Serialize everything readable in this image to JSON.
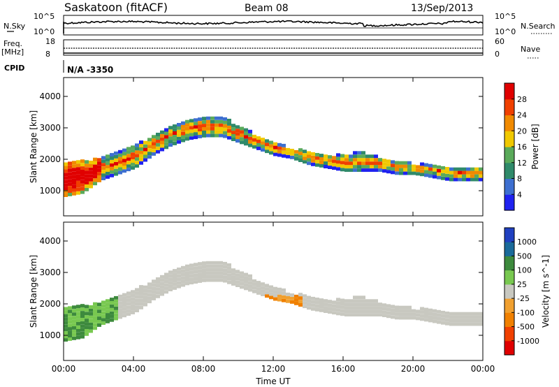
{
  "header": {
    "title": "Saskatoon (fitACF)",
    "beam": "Beam 08",
    "date": "13/Sep/2013"
  },
  "status_panels": {
    "nsky": {
      "left_label": "N.Sky",
      "right_label": "N.Search",
      "left_ticks": [
        "10^5",
        "10^0"
      ],
      "right_ticks": [
        "10^5",
        "10^0"
      ]
    },
    "freq": {
      "left_label": "Freq.",
      "left_unit": "[MHz]",
      "left_ticks": [
        "18",
        "8"
      ],
      "right_label": "Nave",
      "right_ticks": [
        "60",
        "0"
      ]
    },
    "cpid": {
      "label": "CPID",
      "value": "N/A -3350"
    }
  },
  "chart_data": [
    {
      "type": "heatmap",
      "name": "power",
      "ylabel": "Slant Range [km]",
      "ylim": [
        200,
        4600
      ],
      "yticks": [
        "1000",
        "2000",
        "3000",
        "4000"
      ],
      "xticks": [
        "00:00",
        "04:00",
        "08:00",
        "12:00",
        "16:00",
        "20:00",
        "00:00"
      ],
      "colorbar": {
        "label": "Power [dB]",
        "ticks": [
          "4",
          "8",
          "12",
          "16",
          "20",
          "24",
          "28"
        ],
        "colors": [
          "#1f22f0",
          "#3d6fd0",
          "#2f8a6a",
          "#5aaa5a",
          "#f0c800",
          "#f08a00",
          "#f04000",
          "#e00000"
        ]
      },
      "echo_band_ranges_km": [
        {
          "time_h": 0.0,
          "lower": 800,
          "upper": 1900
        },
        {
          "time_h": 1.0,
          "lower": 900,
          "upper": 1900
        },
        {
          "time_h": 2.0,
          "lower": 1300,
          "upper": 2000
        },
        {
          "time_h": 3.0,
          "lower": 1500,
          "upper": 2200
        },
        {
          "time_h": 4.0,
          "lower": 1700,
          "upper": 2400
        },
        {
          "time_h": 5.0,
          "lower": 2100,
          "upper": 2700
        },
        {
          "time_h": 6.0,
          "lower": 2400,
          "upper": 3000
        },
        {
          "time_h": 7.0,
          "lower": 2600,
          "upper": 3200
        },
        {
          "time_h": 8.0,
          "lower": 2700,
          "upper": 3300
        },
        {
          "time_h": 9.0,
          "lower": 2700,
          "upper": 3300
        },
        {
          "time_h": 10.0,
          "lower": 2500,
          "upper": 3000
        },
        {
          "time_h": 11.0,
          "lower": 2300,
          "upper": 2700
        },
        {
          "time_h": 12.0,
          "lower": 2100,
          "upper": 2500
        },
        {
          "time_h": 13.0,
          "lower": 2000,
          "upper": 2300
        },
        {
          "time_h": 14.0,
          "lower": 1800,
          "upper": 2200
        },
        {
          "time_h": 15.0,
          "lower": 1700,
          "upper": 2100
        },
        {
          "time_h": 16.0,
          "lower": 1600,
          "upper": 2100
        },
        {
          "time_h": 17.0,
          "lower": 1600,
          "upper": 2200
        },
        {
          "time_h": 18.0,
          "lower": 1600,
          "upper": 2000
        },
        {
          "time_h": 19.0,
          "lower": 1500,
          "upper": 1900
        },
        {
          "time_h": 20.0,
          "lower": 1500,
          "upper": 1800
        },
        {
          "time_h": 21.0,
          "lower": 1400,
          "upper": 1800
        },
        {
          "time_h": 22.0,
          "lower": 1300,
          "upper": 1700
        },
        {
          "time_h": 23.0,
          "lower": 1300,
          "upper": 1700
        },
        {
          "time_h": 24.0,
          "lower": 1300,
          "upper": 1700
        }
      ]
    },
    {
      "type": "heatmap",
      "name": "velocity",
      "ylabel": "Slant Range [km]",
      "xlabel": "Time UT",
      "ylim": [
        200,
        4600
      ],
      "yticks": [
        "1000",
        "2000",
        "3000",
        "4000"
      ],
      "xticks": [
        "00:00",
        "04:00",
        "08:00",
        "12:00",
        "16:00",
        "20:00",
        "00:00"
      ],
      "colorbar": {
        "label": "Velocity [m s^-1]",
        "ticks": [
          "1000",
          "500",
          "100",
          "25",
          "-25",
          "-100",
          "-500",
          "-1000"
        ],
        "colors": [
          "#2040c0",
          "#1a6a9a",
          "#3d8a3d",
          "#78c850",
          "#c8c8c0",
          "#f0a030",
          "#f08000",
          "#f04000",
          "#e00000"
        ]
      }
    }
  ]
}
